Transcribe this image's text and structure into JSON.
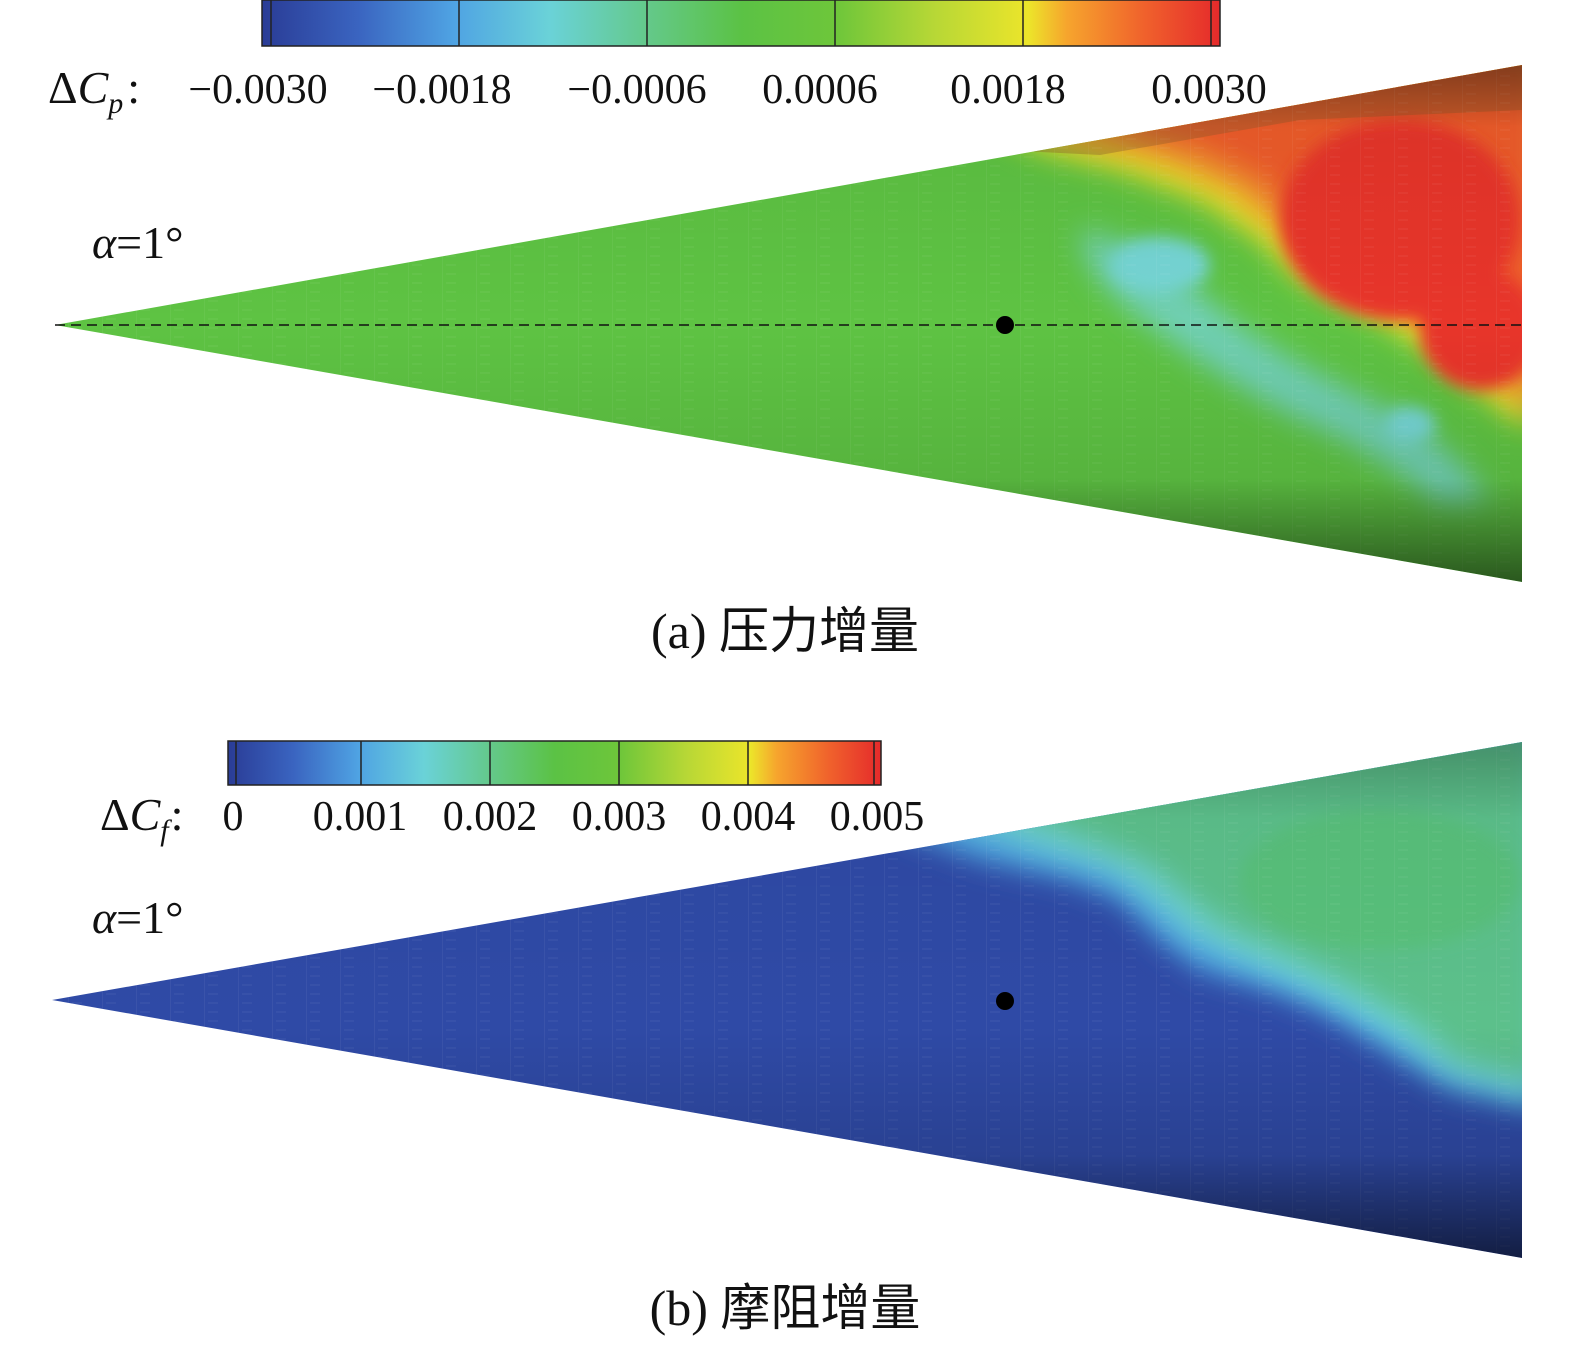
{
  "panel_a": {
    "colorbar": {
      "symbol_prefix": "Δ",
      "symbol_letter": "C",
      "symbol_subscript": "p",
      "symbol_suffix": ":",
      "ticks": [
        "−0.0030",
        "−0.0018",
        "−0.0006",
        "0.0006",
        "0.0018",
        "0.0030"
      ],
      "min": -0.003,
      "max": 0.003,
      "colors": [
        "#2b3f9c",
        "#3a6fc8",
        "#4fa9e6",
        "#67d3de",
        "#62c98f",
        "#5bc248",
        "#6cc53a",
        "#a9d43a",
        "#e8e829",
        "#f7a12c",
        "#f0602c",
        "#e82d2a"
      ]
    },
    "angle_label": {
      "greek": "α",
      "rest": "=1°"
    },
    "caption": "(a) 压力增量"
  },
  "panel_b": {
    "colorbar": {
      "symbol_prefix": "Δ",
      "symbol_letter": "C",
      "symbol_subscript": "f",
      "symbol_suffix": ":",
      "ticks": [
        "0",
        "0.001",
        "0.002",
        "0.003",
        "0.004",
        "0.005"
      ],
      "min": 0,
      "max": 0.005,
      "colors": [
        "#2b3f9c",
        "#3a6fc8",
        "#4fa9e6",
        "#67d3de",
        "#62c98f",
        "#5bc248",
        "#6cc53a",
        "#a9d43a",
        "#e8e829",
        "#f7a12c",
        "#f0602c",
        "#e82d2a"
      ]
    },
    "angle_label": {
      "greek": "α",
      "rest": "=1°"
    },
    "caption": "(b) 摩阻增量"
  }
}
